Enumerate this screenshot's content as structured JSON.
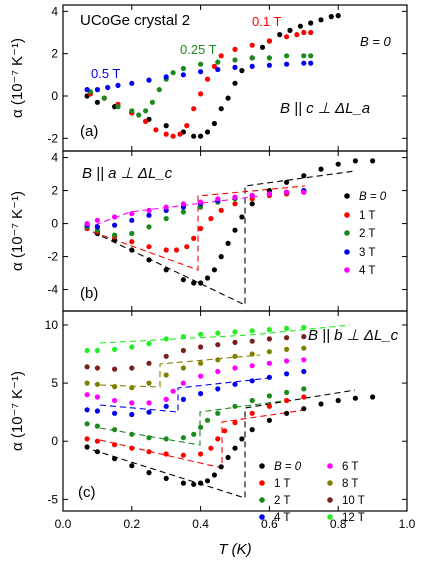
{
  "x_axis": {
    "label": "T (K)",
    "min": 0.0,
    "max": 1.0,
    "ticks": [
      "0.0",
      "0.2",
      "0.4",
      "0.6",
      "0.8",
      "1.0"
    ]
  },
  "colors": {
    "black": "#000000",
    "red": "#ff0000",
    "green": "#1a8a1a",
    "blue": "#0000ee",
    "magenta": "#ff00ff",
    "olive": "#808000",
    "brown": "#7a1f1f",
    "lime": "#22ee22"
  },
  "chart_data": [
    {
      "type": "scatter",
      "panel_label": "(a)",
      "title": "UCoGe crystal 2",
      "annotation": "B || c ⊥ ΔL_a",
      "ylabel": "α (10⁻⁷ K⁻¹)",
      "ylim": [
        -2.6,
        4.3
      ],
      "yticks": [
        "-2",
        "0",
        "2",
        "4"
      ],
      "labels": [
        {
          "text": "0.1 T",
          "series": "0.1 T"
        },
        {
          "text": "0.25 T",
          "series": "0.25 T"
        },
        {
          "text": "0.5 T",
          "series": "0.5 T"
        },
        {
          "text": "B = 0",
          "series": "B = 0"
        }
      ],
      "series": [
        {
          "name": "B = 0",
          "color": "#000000",
          "x": [
            0.07,
            0.1,
            0.15,
            0.2,
            0.25,
            0.3,
            0.35,
            0.38,
            0.4,
            0.42,
            0.44,
            0.46,
            0.48,
            0.5,
            0.52,
            0.55,
            0.58,
            0.6,
            0.63,
            0.66,
            0.69,
            0.72,
            0.75,
            0.78,
            0.8
          ],
          "y": [
            0.0,
            -0.3,
            -0.5,
            -0.8,
            -1.1,
            -1.4,
            -1.7,
            -1.9,
            -1.9,
            -1.7,
            -1.3,
            -0.6,
            -0.1,
            0.6,
            1.2,
            1.8,
            2.3,
            2.6,
            2.9,
            3.1,
            3.3,
            3.45,
            3.6,
            3.75,
            3.8
          ]
        },
        {
          "name": "0.1 T",
          "color": "#ff0000",
          "x": [
            0.08,
            0.12,
            0.16,
            0.2,
            0.24,
            0.27,
            0.3,
            0.32,
            0.34,
            0.36,
            0.38,
            0.4,
            0.42,
            0.44,
            0.46,
            0.5,
            0.55,
            0.6,
            0.65,
            0.68,
            0.7,
            0.72
          ],
          "y": [
            0.1,
            -0.1,
            -0.4,
            -0.8,
            -1.2,
            -1.6,
            -1.8,
            -1.9,
            -1.8,
            -1.4,
            -0.6,
            0.1,
            0.8,
            1.4,
            1.9,
            2.2,
            2.4,
            2.6,
            2.8,
            2.9,
            3.0,
            3.0
          ]
        },
        {
          "name": "0.25 T",
          "color": "#1a8a1a",
          "x": [
            0.08,
            0.12,
            0.16,
            0.2,
            0.22,
            0.24,
            0.26,
            0.28,
            0.3,
            0.32,
            0.35,
            0.4,
            0.45,
            0.5,
            0.55,
            0.6,
            0.65,
            0.7,
            0.72
          ],
          "y": [
            0.2,
            -0.1,
            -0.5,
            -0.7,
            -0.9,
            -0.7,
            -0.3,
            0.3,
            0.8,
            1.1,
            1.3,
            1.5,
            1.6,
            1.7,
            1.8,
            1.8,
            1.9,
            1.9,
            1.9
          ]
        },
        {
          "name": "0.5 T",
          "color": "#0000ee",
          "x": [
            0.07,
            0.1,
            0.13,
            0.16,
            0.2,
            0.25,
            0.3,
            0.35,
            0.4,
            0.45,
            0.5,
            0.55,
            0.6,
            0.65,
            0.7,
            0.72
          ],
          "y": [
            0.3,
            0.3,
            0.4,
            0.5,
            0.6,
            0.75,
            0.9,
            1.0,
            1.15,
            1.25,
            1.35,
            1.4,
            1.45,
            1.5,
            1.55,
            1.55
          ]
        }
      ]
    },
    {
      "type": "scatter",
      "panel_label": "(b)",
      "annotation": "B || a ⊥ ΔL_c",
      "ylabel": "α (10⁻⁷ K⁻¹)",
      "ylim": [
        -5.3,
        4.4
      ],
      "yticks": [
        "-4",
        "-2",
        "0",
        "2",
        "4"
      ],
      "legend": [
        "B = 0",
        "1 T",
        "2 T",
        "3 T",
        "4 T"
      ],
      "series": [
        {
          "name": "B = 0",
          "color": "#000000",
          "x": [
            0.07,
            0.1,
            0.15,
            0.2,
            0.25,
            0.3,
            0.35,
            0.38,
            0.4,
            0.42,
            0.44,
            0.46,
            0.48,
            0.5,
            0.52,
            0.55,
            0.6,
            0.65,
            0.7,
            0.75,
            0.8,
            0.85,
            0.9
          ],
          "y": [
            -0.3,
            -0.6,
            -1.0,
            -1.6,
            -2.2,
            -2.8,
            -3.4,
            -3.6,
            -3.6,
            -3.3,
            -2.8,
            -2.0,
            -1.2,
            -0.4,
            0.4,
            1.2,
            2.0,
            2.5,
            2.9,
            3.3,
            3.6,
            3.8,
            3.8
          ]
        },
        {
          "name": "1 T",
          "color": "#ff0000",
          "x": [
            0.07,
            0.1,
            0.15,
            0.2,
            0.25,
            0.3,
            0.33,
            0.36,
            0.38,
            0.4,
            0.43,
            0.46,
            0.5,
            0.55,
            0.6,
            0.65,
            0.7
          ],
          "y": [
            -0.3,
            -0.5,
            -0.8,
            -1.1,
            -1.4,
            -1.6,
            -1.6,
            -1.4,
            -0.9,
            -0.3,
            0.3,
            0.8,
            1.2,
            1.5,
            1.7,
            1.8,
            1.9
          ]
        },
        {
          "name": "2 T",
          "color": "#1a8a1a",
          "x": [
            0.07,
            0.1,
            0.15,
            0.2,
            0.25,
            0.3,
            0.35,
            0.4,
            0.45,
            0.5,
            0.55,
            0.6,
            0.65,
            0.7
          ],
          "y": [
            -0.2,
            -0.4,
            -0.7,
            -0.6,
            -0.2,
            0.3,
            0.7,
            1.0,
            1.3,
            1.5,
            1.7,
            1.8,
            1.9,
            2.0
          ]
        },
        {
          "name": "3 T",
          "color": "#0000ee",
          "x": [
            0.07,
            0.1,
            0.15,
            0.2,
            0.25,
            0.3,
            0.35,
            0.4,
            0.45,
            0.5,
            0.55,
            0.6,
            0.65,
            0.7
          ],
          "y": [
            -0.1,
            -0.2,
            -0.1,
            0.2,
            0.5,
            0.8,
            1.0,
            1.2,
            1.4,
            1.6,
            1.7,
            1.8,
            1.9,
            2.0
          ]
        },
        {
          "name": "4 T",
          "color": "#ff00ff",
          "x": [
            0.07,
            0.1,
            0.15,
            0.2,
            0.25,
            0.3,
            0.35,
            0.4,
            0.45,
            0.5,
            0.55,
            0.6,
            0.65,
            0.7
          ],
          "y": [
            0.0,
            0.2,
            0.4,
            0.6,
            0.8,
            1.0,
            1.2,
            1.3,
            1.5,
            1.6,
            1.7,
            1.8,
            1.9,
            1.9
          ]
        }
      ]
    },
    {
      "type": "scatter",
      "panel_label": "(c)",
      "annotation": "B || b ⊥ ΔL_c",
      "ylabel": "α (10⁻⁷ K⁻¹)",
      "ylim": [
        -6.0,
        11.2
      ],
      "yticks": [
        "-5",
        "0",
        "5",
        "10"
      ],
      "legend": [
        "B = 0",
        "1 T",
        "2 T",
        "4 T",
        "6 T",
        "8 T",
        "10 T",
        "12 T"
      ],
      "series": [
        {
          "name": "B = 0",
          "color": "#000000",
          "x": [
            0.07,
            0.1,
            0.15,
            0.2,
            0.25,
            0.3,
            0.35,
            0.38,
            0.4,
            0.42,
            0.44,
            0.46,
            0.48,
            0.5,
            0.52,
            0.55,
            0.6,
            0.65,
            0.7,
            0.75,
            0.8,
            0.85,
            0.9
          ],
          "y": [
            -0.5,
            -0.9,
            -1.5,
            -2.1,
            -2.7,
            -3.2,
            -3.6,
            -3.7,
            -3.6,
            -3.4,
            -2.9,
            -2.2,
            -1.4,
            -0.6,
            0.2,
            1.0,
            1.8,
            2.4,
            2.8,
            3.2,
            3.5,
            3.7,
            3.8
          ]
        },
        {
          "name": "1 T",
          "color": "#ff0000",
          "x": [
            0.07,
            0.1,
            0.15,
            0.2,
            0.25,
            0.3,
            0.35,
            0.4,
            0.43,
            0.45,
            0.47,
            0.5,
            0.55,
            0.6,
            0.65,
            0.7
          ],
          "y": [
            0.2,
            0.0,
            -0.3,
            -0.6,
            -0.9,
            -1.1,
            -1.2,
            -1.1,
            -0.6,
            0.2,
            0.9,
            1.6,
            2.4,
            3.0,
            3.5,
            3.8
          ]
        },
        {
          "name": "2 T",
          "color": "#1a8a1a",
          "x": [
            0.07,
            0.1,
            0.15,
            0.2,
            0.25,
            0.3,
            0.35,
            0.38,
            0.4,
            0.42,
            0.45,
            0.5,
            0.55,
            0.6,
            0.65,
            0.7
          ],
          "y": [
            1.5,
            1.3,
            1.0,
            0.6,
            0.3,
            0.2,
            0.3,
            0.6,
            1.2,
            1.8,
            2.4,
            3.0,
            3.5,
            3.9,
            4.2,
            4.5
          ]
        },
        {
          "name": "4 T",
          "color": "#0000ee",
          "x": [
            0.07,
            0.1,
            0.15,
            0.2,
            0.25,
            0.3,
            0.35,
            0.4,
            0.45,
            0.5,
            0.55,
            0.6,
            0.65,
            0.7
          ],
          "y": [
            2.7,
            2.6,
            2.4,
            2.3,
            2.5,
            3.0,
            3.6,
            4.1,
            4.5,
            4.9,
            5.2,
            5.5,
            5.8,
            6.0
          ]
        },
        {
          "name": "6 T",
          "color": "#ff00ff",
          "x": [
            0.07,
            0.1,
            0.15,
            0.2,
            0.25,
            0.3,
            0.32,
            0.35,
            0.4,
            0.45,
            0.5,
            0.55,
            0.6,
            0.65,
            0.7
          ],
          "y": [
            4.0,
            3.8,
            3.5,
            3.3,
            3.3,
            3.6,
            4.3,
            5.0,
            5.6,
            6.0,
            6.3,
            6.5,
            6.7,
            6.9,
            7.0
          ]
        },
        {
          "name": "8 T",
          "color": "#808000",
          "x": [
            0.07,
            0.1,
            0.15,
            0.2,
            0.25,
            0.3,
            0.35,
            0.4,
            0.45,
            0.5,
            0.55,
            0.6,
            0.65,
            0.7
          ],
          "y": [
            5.0,
            4.9,
            4.7,
            4.6,
            5.0,
            5.7,
            6.3,
            6.7,
            7.0,
            7.3,
            7.5,
            7.7,
            7.9,
            8.0
          ]
        },
        {
          "name": "10 T",
          "color": "#7a1f1f",
          "x": [
            0.07,
            0.1,
            0.15,
            0.2,
            0.25,
            0.3,
            0.35,
            0.4,
            0.45,
            0.5,
            0.55,
            0.6,
            0.65,
            0.7
          ],
          "y": [
            6.4,
            6.3,
            6.2,
            6.3,
            6.7,
            7.3,
            7.8,
            8.1,
            8.3,
            8.5,
            8.6,
            8.8,
            8.9,
            9.0
          ]
        },
        {
          "name": "12 T",
          "color": "#22ee22",
          "x": [
            0.07,
            0.1,
            0.15,
            0.2,
            0.25,
            0.3,
            0.35,
            0.4,
            0.45,
            0.5,
            0.55,
            0.6,
            0.65,
            0.7
          ],
          "y": [
            7.8,
            7.8,
            7.9,
            8.1,
            8.4,
            8.8,
            9.0,
            9.2,
            9.3,
            9.4,
            9.5,
            9.6,
            9.7,
            9.8
          ]
        }
      ]
    }
  ]
}
